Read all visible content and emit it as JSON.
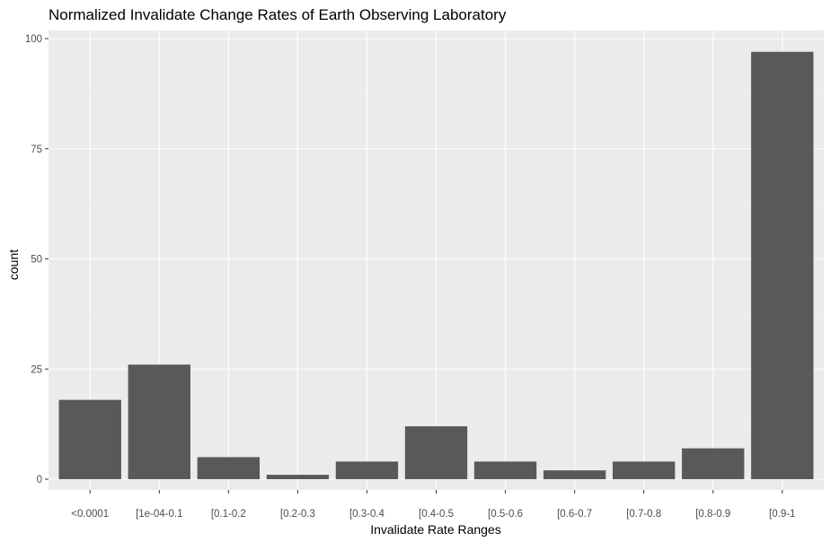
{
  "chart_data": {
    "type": "bar",
    "title": "Normalized Invalidate Change Rates of Earth Observing Laboratory",
    "xlabel": "Invalidate Rate Ranges",
    "ylabel": "count",
    "categories": [
      "<0.0001",
      "[1e-04-0.1",
      "[0.1-0.2",
      "[0.2-0.3",
      "[0.3-0.4",
      "[0.4-0.5",
      "[0.5-0.6",
      "[0.6-0.7",
      "[0.7-0.8",
      "[0.8-0.9",
      "[0.9-1"
    ],
    "values": [
      18,
      26,
      5,
      1,
      4,
      12,
      4,
      2,
      4,
      7,
      97
    ],
    "yticks": [
      0,
      25,
      50,
      75,
      100
    ],
    "ylim": [
      0,
      102
    ],
    "grid": true,
    "legend": "none",
    "colors": {
      "bar": "#595959",
      "panel": "#ebebeb",
      "grid_major": "#ffffff",
      "grid_minor": "#f5f5f5",
      "tick_text": "#4d4d4d",
      "tick_mark": "#333333"
    }
  }
}
